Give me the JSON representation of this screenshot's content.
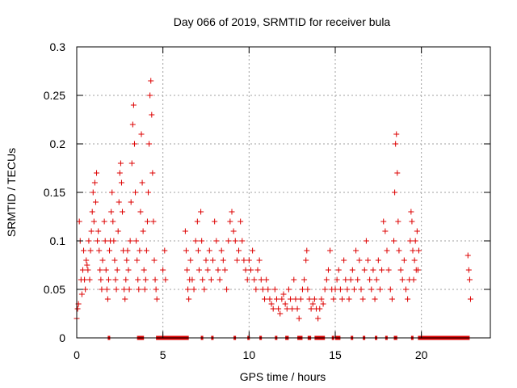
{
  "chart_data": {
    "type": "scatter",
    "title": "Day 066 of 2019, SRMTID for receiver bula",
    "xlabel": "GPS time / hours",
    "ylabel": "SRMTID / TECUs",
    "xlim": [
      0,
      24
    ],
    "ylim": [
      0,
      0.3
    ],
    "x_ticks": [
      0,
      5,
      10,
      15,
      20
    ],
    "x_tick_labels": [
      "0",
      "5",
      "10",
      "15",
      "20"
    ],
    "y_ticks": [
      0,
      0.05,
      0.1,
      0.15,
      0.2,
      0.25,
      0.3
    ],
    "y_tick_labels": [
      "0",
      "0.05",
      "0.1",
      "0.15",
      "0.2",
      "0.25",
      "0.3"
    ],
    "grid": true,
    "marker": "+",
    "point_color": "#dd0000",
    "series": [
      {
        "name": "SRMTID",
        "points": [
          [
            0.0,
            0.02
          ],
          [
            0.05,
            0.03
          ],
          [
            0.1,
            0.035
          ],
          [
            0.15,
            0.12
          ],
          [
            0.2,
            0.1
          ],
          [
            0.25,
            0.06
          ],
          [
            0.3,
            0.045
          ],
          [
            0.35,
            0.07
          ],
          [
            0.4,
            0.09
          ],
          [
            0.45,
            0.06
          ],
          [
            0.5,
            0.05
          ],
          [
            0.55,
            0.08
          ],
          [
            0.6,
            0.075
          ],
          [
            0.65,
            0.07
          ],
          [
            0.7,
            0.1
          ],
          [
            0.75,
            0.06
          ],
          [
            0.8,
            0.09
          ],
          [
            0.85,
            0.11
          ],
          [
            0.9,
            0.13
          ],
          [
            0.95,
            0.15
          ],
          [
            1.0,
            0.12
          ],
          [
            1.05,
            0.16
          ],
          [
            1.1,
            0.14
          ],
          [
            1.15,
            0.17
          ],
          [
            1.2,
            0.1
          ],
          [
            1.25,
            0.11
          ],
          [
            1.3,
            0.09
          ],
          [
            1.35,
            0.07
          ],
          [
            1.4,
            0.06
          ],
          [
            1.45,
            0.05
          ],
          [
            1.5,
            0.08
          ],
          [
            1.6,
            0.12
          ],
          [
            1.65,
            0.1
          ],
          [
            1.7,
            0.07
          ],
          [
            1.75,
            0.05
          ],
          [
            1.8,
            0.04
          ],
          [
            1.85,
            0.06
          ],
          [
            1.9,
            0.09
          ],
          [
            1.95,
            0.1
          ],
          [
            2.0,
            0.13
          ],
          [
            2.05,
            0.15
          ],
          [
            2.1,
            0.12
          ],
          [
            2.15,
            0.1
          ],
          [
            2.2,
            0.08
          ],
          [
            2.25,
            0.06
          ],
          [
            2.3,
            0.05
          ],
          [
            2.35,
            0.07
          ],
          [
            2.4,
            0.11
          ],
          [
            2.45,
            0.14
          ],
          [
            2.5,
            0.17
          ],
          [
            2.55,
            0.18
          ],
          [
            2.6,
            0.16
          ],
          [
            2.65,
            0.13
          ],
          [
            2.7,
            0.09
          ],
          [
            2.75,
            0.05
          ],
          [
            2.8,
            0.04
          ],
          [
            2.85,
            0.06
          ],
          [
            2.9,
            0.08
          ],
          [
            2.95,
            0.09
          ],
          [
            3.0,
            0.07
          ],
          [
            3.05,
            0.05
          ],
          [
            3.1,
            0.1
          ],
          [
            3.15,
            0.14
          ],
          [
            3.2,
            0.18
          ],
          [
            3.25,
            0.22
          ],
          [
            3.3,
            0.24
          ],
          [
            3.35,
            0.2
          ],
          [
            3.4,
            0.15
          ],
          [
            3.45,
            0.1
          ],
          [
            3.5,
            0.08
          ],
          [
            3.55,
            0.06
          ],
          [
            3.6,
            0.05
          ],
          [
            3.65,
            0.09
          ],
          [
            3.7,
            0.13
          ],
          [
            3.75,
            0.21
          ],
          [
            3.8,
            0.16
          ],
          [
            3.85,
            0.11
          ],
          [
            3.9,
            0.07
          ],
          [
            3.95,
            0.05
          ],
          [
            4.0,
            0.06
          ],
          [
            4.05,
            0.09
          ],
          [
            4.1,
            0.12
          ],
          [
            4.15,
            0.15
          ],
          [
            4.2,
            0.2
          ],
          [
            4.25,
            0.25
          ],
          [
            4.3,
            0.265
          ],
          [
            4.35,
            0.23
          ],
          [
            4.4,
            0.17
          ],
          [
            4.45,
            0.12
          ],
          [
            4.5,
            0.08
          ],
          [
            4.55,
            0.06
          ],
          [
            4.6,
            0.05
          ],
          [
            4.65,
            0.04
          ],
          [
            5.0,
            0.07
          ],
          [
            5.1,
            0.09
          ],
          [
            5.15,
            0.06
          ],
          [
            6.3,
            0.11
          ],
          [
            6.35,
            0.09
          ],
          [
            6.4,
            0.07
          ],
          [
            6.45,
            0.05
          ],
          [
            6.5,
            0.04
          ],
          [
            6.55,
            0.06
          ],
          [
            6.6,
            0.08
          ],
          [
            6.7,
            0.06
          ],
          [
            6.8,
            0.05
          ],
          [
            6.9,
            0.1
          ],
          [
            7.0,
            0.12
          ],
          [
            7.05,
            0.09
          ],
          [
            7.1,
            0.07
          ],
          [
            7.2,
            0.13
          ],
          [
            7.25,
            0.1
          ],
          [
            7.3,
            0.06
          ],
          [
            7.4,
            0.05
          ],
          [
            7.5,
            0.08
          ],
          [
            7.6,
            0.07
          ],
          [
            7.7,
            0.09
          ],
          [
            7.8,
            0.06
          ],
          [
            7.9,
            0.08
          ],
          [
            8.0,
            0.12
          ],
          [
            8.1,
            0.1
          ],
          [
            8.2,
            0.07
          ],
          [
            8.3,
            0.06
          ],
          [
            8.4,
            0.09
          ],
          [
            8.5,
            0.08
          ],
          [
            8.6,
            0.07
          ],
          [
            8.7,
            0.05
          ],
          [
            8.8,
            0.1
          ],
          [
            8.9,
            0.12
          ],
          [
            9.0,
            0.13
          ],
          [
            9.1,
            0.11
          ],
          [
            9.2,
            0.1
          ],
          [
            9.3,
            0.08
          ],
          [
            9.4,
            0.09
          ],
          [
            9.5,
            0.12
          ],
          [
            9.6,
            0.1
          ],
          [
            9.7,
            0.08
          ],
          [
            9.8,
            0.07
          ],
          [
            9.9,
            0.06
          ],
          [
            10.0,
            0.08
          ],
          [
            10.1,
            0.07
          ],
          [
            10.2,
            0.09
          ],
          [
            10.3,
            0.06
          ],
          [
            10.4,
            0.05
          ],
          [
            10.5,
            0.07
          ],
          [
            10.6,
            0.08
          ],
          [
            10.7,
            0.06
          ],
          [
            10.8,
            0.05
          ],
          [
            10.9,
            0.04
          ],
          [
            11.0,
            0.06
          ],
          [
            11.1,
            0.05
          ],
          [
            11.2,
            0.04
          ],
          [
            11.3,
            0.035
          ],
          [
            11.4,
            0.03
          ],
          [
            11.5,
            0.05
          ],
          [
            11.6,
            0.04
          ],
          [
            11.7,
            0.03
          ],
          [
            11.8,
            0.025
          ],
          [
            11.9,
            0.04
          ],
          [
            12.0,
            0.045
          ],
          [
            12.1,
            0.035
          ],
          [
            12.2,
            0.03
          ],
          [
            12.3,
            0.05
          ],
          [
            12.4,
            0.04
          ],
          [
            12.5,
            0.03
          ],
          [
            12.6,
            0.06
          ],
          [
            12.7,
            0.04
          ],
          [
            12.8,
            0.03
          ],
          [
            12.9,
            0.02
          ],
          [
            13.0,
            0.04
          ],
          [
            13.1,
            0.05
          ],
          [
            13.2,
            0.06
          ],
          [
            13.3,
            0.08
          ],
          [
            13.35,
            0.09
          ],
          [
            13.4,
            0.05
          ],
          [
            13.5,
            0.04
          ],
          [
            13.6,
            0.03
          ],
          [
            13.7,
            0.035
          ],
          [
            13.8,
            0.04
          ],
          [
            13.9,
            0.03
          ],
          [
            14.0,
            0.02
          ],
          [
            14.1,
            0.03
          ],
          [
            14.2,
            0.04
          ],
          [
            14.3,
            0.035
          ],
          [
            14.4,
            0.05
          ],
          [
            14.5,
            0.06
          ],
          [
            14.6,
            0.07
          ],
          [
            14.7,
            0.09
          ],
          [
            14.8,
            0.05
          ],
          [
            14.9,
            0.04
          ],
          [
            15.0,
            0.05
          ],
          [
            15.1,
            0.06
          ],
          [
            15.2,
            0.07
          ],
          [
            15.3,
            0.05
          ],
          [
            15.4,
            0.04
          ],
          [
            15.5,
            0.08
          ],
          [
            15.6,
            0.06
          ],
          [
            15.7,
            0.05
          ],
          [
            15.8,
            0.04
          ],
          [
            15.9,
            0.06
          ],
          [
            16.0,
            0.07
          ],
          [
            16.1,
            0.05
          ],
          [
            16.2,
            0.09
          ],
          [
            16.3,
            0.06
          ],
          [
            16.4,
            0.08
          ],
          [
            16.5,
            0.05
          ],
          [
            16.6,
            0.04
          ],
          [
            16.7,
            0.07
          ],
          [
            16.8,
            0.1
          ],
          [
            16.9,
            0.08
          ],
          [
            17.0,
            0.06
          ],
          [
            17.1,
            0.05
          ],
          [
            17.2,
            0.07
          ],
          [
            17.3,
            0.04
          ],
          [
            17.4,
            0.06
          ],
          [
            17.5,
            0.08
          ],
          [
            17.6,
            0.05
          ],
          [
            17.7,
            0.07
          ],
          [
            17.8,
            0.12
          ],
          [
            17.9,
            0.11
          ],
          [
            18.0,
            0.09
          ],
          [
            18.1,
            0.07
          ],
          [
            18.2,
            0.05
          ],
          [
            18.3,
            0.04
          ],
          [
            18.4,
            0.1
          ],
          [
            18.45,
            0.15
          ],
          [
            18.5,
            0.2
          ],
          [
            18.55,
            0.21
          ],
          [
            18.6,
            0.17
          ],
          [
            18.65,
            0.12
          ],
          [
            18.7,
            0.09
          ],
          [
            18.8,
            0.07
          ],
          [
            18.9,
            0.06
          ],
          [
            19.0,
            0.08
          ],
          [
            19.1,
            0.05
          ],
          [
            19.2,
            0.04
          ],
          [
            19.3,
            0.06
          ],
          [
            19.35,
            0.1
          ],
          [
            19.4,
            0.13
          ],
          [
            19.45,
            0.12
          ],
          [
            19.5,
            0.09
          ],
          [
            19.55,
            0.06
          ],
          [
            19.6,
            0.08
          ],
          [
            19.65,
            0.1
          ],
          [
            19.7,
            0.07
          ],
          [
            19.75,
            0.11
          ],
          [
            19.8,
            0.07
          ],
          [
            19.85,
            0.09
          ],
          [
            22.7,
            0.085
          ],
          [
            22.75,
            0.07
          ],
          [
            22.8,
            0.06
          ],
          [
            22.85,
            0.04
          ]
        ]
      }
    ],
    "zero_segments": [
      [
        1.8,
        1.9
      ],
      [
        3.5,
        3.9
      ],
      [
        4.6,
        6.5
      ],
      [
        7.2,
        7.3
      ],
      [
        7.8,
        7.9
      ],
      [
        9.1,
        9.2
      ],
      [
        9.9,
        10.0
      ],
      [
        10.6,
        10.7
      ],
      [
        11.5,
        11.6
      ],
      [
        12.1,
        12.3
      ],
      [
        12.8,
        13.1
      ],
      [
        13.4,
        13.6
      ],
      [
        13.8,
        14.4
      ],
      [
        14.8,
        14.9
      ],
      [
        15.0,
        15.3
      ],
      [
        15.9,
        16.0
      ],
      [
        16.6,
        16.7
      ],
      [
        17.3,
        17.4
      ],
      [
        17.9,
        18.0
      ],
      [
        18.4,
        18.6
      ],
      [
        19.4,
        19.5
      ],
      [
        19.8,
        22.8
      ]
    ]
  }
}
